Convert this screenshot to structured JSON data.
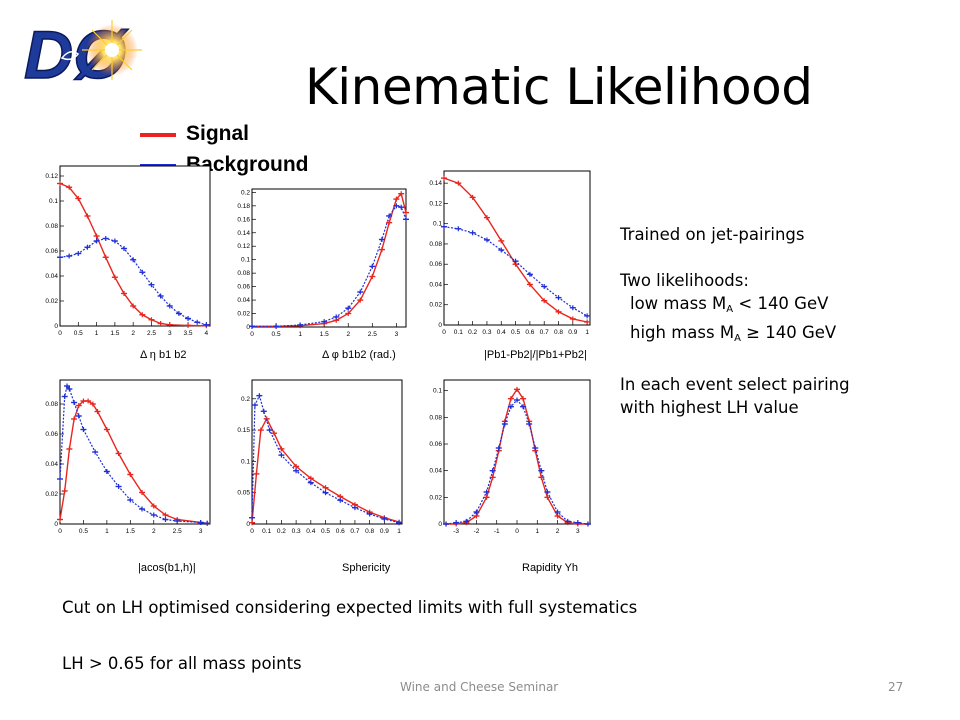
{
  "slide": {
    "title": "Kinematic Likelihood",
    "logo_text": "DØ",
    "footer": "Wine and Cheese Seminar",
    "page_number": "27"
  },
  "legend": {
    "signal_label": "Signal",
    "background_label": "Background",
    "signal_color": "#e8261f",
    "background_color": "#1f2fd6"
  },
  "notes": {
    "trained": "Trained on jet-pairings",
    "two_likelihoods": "Two likelihoods:",
    "low_mass_prefix": "low mass M",
    "low_mass_sub": "A",
    "low_mass_suffix": " < 140 GeV",
    "high_mass_prefix": "high mass M",
    "high_mass_sub": "A",
    "high_mass_suffix": " ≥ 140 GeV",
    "select_line1": "In each event select pairing",
    "select_line2": "with highest LH value",
    "cut_line": "Cut on LH optimised considering expected limits with full systematics",
    "lh_line": "LH > 0.65 for all mass points"
  },
  "chart_data": [
    {
      "type": "line",
      "xlabel": "Δ η b1 b2",
      "x_ticks": [
        "0",
        "0.5",
        "1",
        "1.5",
        "2",
        "2.5",
        "3",
        "3.5",
        "4"
      ],
      "y_ticks": [
        "0",
        "0.02",
        "0.04",
        "0.06",
        "0.08",
        "0.1",
        "0.12"
      ],
      "xlim": [
        0,
        4.1
      ],
      "ylim": [
        0,
        0.128
      ],
      "series": [
        {
          "name": "Signal",
          "x": [
            0,
            0.25,
            0.5,
            0.75,
            1,
            1.25,
            1.5,
            1.75,
            2,
            2.25,
            2.5,
            2.75,
            3,
            3.5,
            4
          ],
          "y": [
            0.114,
            0.111,
            0.102,
            0.088,
            0.072,
            0.055,
            0.039,
            0.026,
            0.016,
            0.009,
            0.005,
            0.002,
            0.001,
            0.0005,
            0.0002
          ]
        },
        {
          "name": "Background",
          "x": [
            0,
            0.25,
            0.5,
            0.75,
            1,
            1.25,
            1.5,
            1.75,
            2,
            2.25,
            2.5,
            2.75,
            3,
            3.25,
            3.5,
            3.75,
            4
          ],
          "y": [
            0.055,
            0.056,
            0.058,
            0.063,
            0.068,
            0.07,
            0.068,
            0.062,
            0.053,
            0.043,
            0.033,
            0.024,
            0.016,
            0.01,
            0.006,
            0.003,
            0.001
          ]
        }
      ]
    },
    {
      "type": "line",
      "xlabel": "Δ φ b1b2 (rad.)",
      "x_ticks": [
        "0",
        "0.5",
        "1",
        "1.5",
        "2",
        "2.5",
        "3"
      ],
      "y_ticks": [
        "0",
        "0.02",
        "0.04",
        "0.06",
        "0.08",
        "0.1",
        "0.12",
        "0.14",
        "0.16",
        "0.18",
        "0.2"
      ],
      "xlim": [
        0,
        3.2
      ],
      "ylim": [
        0,
        0.205
      ],
      "series": [
        {
          "name": "Signal",
          "x": [
            0,
            0.5,
            1,
            1.5,
            1.75,
            2,
            2.25,
            2.5,
            2.7,
            2.85,
            3,
            3.1,
            3.2
          ],
          "y": [
            0.001,
            0.001,
            0.002,
            0.005,
            0.01,
            0.02,
            0.04,
            0.075,
            0.115,
            0.155,
            0.19,
            0.198,
            0.17
          ]
        },
        {
          "name": "Background",
          "x": [
            0,
            0.5,
            1,
            1.5,
            1.75,
            2,
            2.25,
            2.5,
            2.7,
            2.85,
            3,
            3.1,
            3.2
          ],
          "y": [
            0.001,
            0.001,
            0.003,
            0.008,
            0.015,
            0.028,
            0.052,
            0.09,
            0.13,
            0.165,
            0.18,
            0.178,
            0.16
          ]
        }
      ]
    },
    {
      "type": "line",
      "xlabel": "|Pb1-Pb2|/|Pb1+Pb2|",
      "x_ticks": [
        "0",
        "0.1",
        "0.2",
        "0.3",
        "0.4",
        "0.5",
        "0.6",
        "0.7",
        "0.8",
        "0.9",
        "1"
      ],
      "y_ticks": [
        "0",
        "0.02",
        "0.04",
        "0.06",
        "0.08",
        "0.1",
        "0.12",
        "0.14"
      ],
      "xlim": [
        0,
        1.02
      ],
      "ylim": [
        0,
        0.152
      ],
      "series": [
        {
          "name": "Signal",
          "x": [
            0,
            0.1,
            0.2,
            0.3,
            0.4,
            0.5,
            0.6,
            0.7,
            0.8,
            0.9,
            1
          ],
          "y": [
            0.145,
            0.14,
            0.126,
            0.106,
            0.083,
            0.06,
            0.04,
            0.024,
            0.013,
            0.006,
            0.003
          ]
        },
        {
          "name": "Background",
          "x": [
            0,
            0.1,
            0.2,
            0.3,
            0.4,
            0.5,
            0.6,
            0.7,
            0.8,
            0.9,
            1
          ],
          "y": [
            0.097,
            0.095,
            0.091,
            0.084,
            0.074,
            0.063,
            0.05,
            0.038,
            0.027,
            0.017,
            0.009
          ]
        }
      ]
    },
    {
      "type": "line",
      "xlabel": "|acos(b1,h)|",
      "x_ticks": [
        "0",
        "0.5",
        "1",
        "1.5",
        "2",
        "2.5",
        "3"
      ],
      "y_ticks": [
        "0",
        "0.02",
        "0.04",
        "0.06",
        "0.08"
      ],
      "xlim": [
        0,
        3.2
      ],
      "ylim": [
        0,
        0.096
      ],
      "series": [
        {
          "name": "Signal",
          "x": [
            0,
            0.1,
            0.2,
            0.3,
            0.4,
            0.5,
            0.6,
            0.7,
            0.8,
            1,
            1.25,
            1.5,
            1.75,
            2,
            2.25,
            2.5,
            3,
            3.14
          ],
          "y": [
            0.003,
            0.022,
            0.05,
            0.07,
            0.079,
            0.082,
            0.082,
            0.08,
            0.075,
            0.063,
            0.047,
            0.033,
            0.021,
            0.012,
            0.006,
            0.003,
            0.001,
            0.0005
          ]
        },
        {
          "name": "Background",
          "x": [
            0,
            0.1,
            0.15,
            0.2,
            0.3,
            0.4,
            0.5,
            0.75,
            1,
            1.25,
            1.5,
            1.75,
            2,
            2.25,
            2.5,
            3,
            3.14
          ],
          "y": [
            0.03,
            0.085,
            0.092,
            0.09,
            0.081,
            0.072,
            0.063,
            0.048,
            0.035,
            0.025,
            0.016,
            0.01,
            0.006,
            0.003,
            0.002,
            0.001,
            0.0005
          ]
        }
      ]
    },
    {
      "type": "line",
      "xlabel": "Sphericity",
      "x_ticks": [
        "0",
        "0.1",
        "0.2",
        "0.3",
        "0.4",
        "0.5",
        "0.6",
        "0.7",
        "0.8",
        "0.9",
        "1"
      ],
      "y_ticks": [
        "0",
        "0.05",
        "0.1",
        "0.15",
        "0.2"
      ],
      "xlim": [
        0,
        1.02
      ],
      "ylim": [
        0,
        0.23
      ],
      "series": [
        {
          "name": "Signal",
          "x": [
            0,
            0.03,
            0.06,
            0.1,
            0.15,
            0.2,
            0.3,
            0.4,
            0.5,
            0.6,
            0.7,
            0.8,
            0.9,
            1
          ],
          "y": [
            0.002,
            0.08,
            0.15,
            0.168,
            0.145,
            0.12,
            0.092,
            0.073,
            0.058,
            0.044,
            0.031,
            0.019,
            0.01,
            0.003
          ]
        },
        {
          "name": "Background",
          "x": [
            0,
            0.02,
            0.05,
            0.08,
            0.12,
            0.2,
            0.3,
            0.4,
            0.5,
            0.6,
            0.7,
            0.8,
            0.9,
            1
          ],
          "y": [
            0.01,
            0.19,
            0.205,
            0.18,
            0.15,
            0.11,
            0.085,
            0.066,
            0.05,
            0.038,
            0.026,
            0.016,
            0.008,
            0.002
          ]
        }
      ]
    },
    {
      "type": "line",
      "xlabel": "Rapidity Yh",
      "x_ticks": [
        "-3",
        "-2",
        "-1",
        "0",
        "1",
        "2",
        "3"
      ],
      "y_ticks": [
        "0",
        "0.02",
        "0.04",
        "0.06",
        "0.08",
        "0.1"
      ],
      "xlim": [
        -3.6,
        3.6
      ],
      "ylim": [
        0,
        0.108
      ],
      "series": [
        {
          "name": "Signal",
          "x": [
            -3.5,
            -3,
            -2.5,
            -2,
            -1.5,
            -1.2,
            -0.9,
            -0.6,
            -0.3,
            0,
            0.3,
            0.6,
            0.9,
            1.2,
            1.5,
            2,
            2.5,
            3,
            3.5
          ],
          "y": [
            0,
            0,
            0.001,
            0.006,
            0.02,
            0.035,
            0.055,
            0.077,
            0.094,
            0.101,
            0.094,
            0.077,
            0.055,
            0.035,
            0.02,
            0.006,
            0.001,
            0,
            0
          ]
        },
        {
          "name": "Background",
          "x": [
            -3.5,
            -3,
            -2.5,
            -2,
            -1.5,
            -1.2,
            -0.9,
            -0.6,
            -0.3,
            0,
            0.3,
            0.6,
            0.9,
            1.2,
            1.5,
            2,
            2.5,
            3,
            3.5
          ],
          "y": [
            0,
            0.001,
            0.002,
            0.009,
            0.024,
            0.04,
            0.057,
            0.075,
            0.088,
            0.093,
            0.088,
            0.075,
            0.057,
            0.04,
            0.024,
            0.009,
            0.002,
            0.001,
            0
          ]
        }
      ]
    }
  ]
}
